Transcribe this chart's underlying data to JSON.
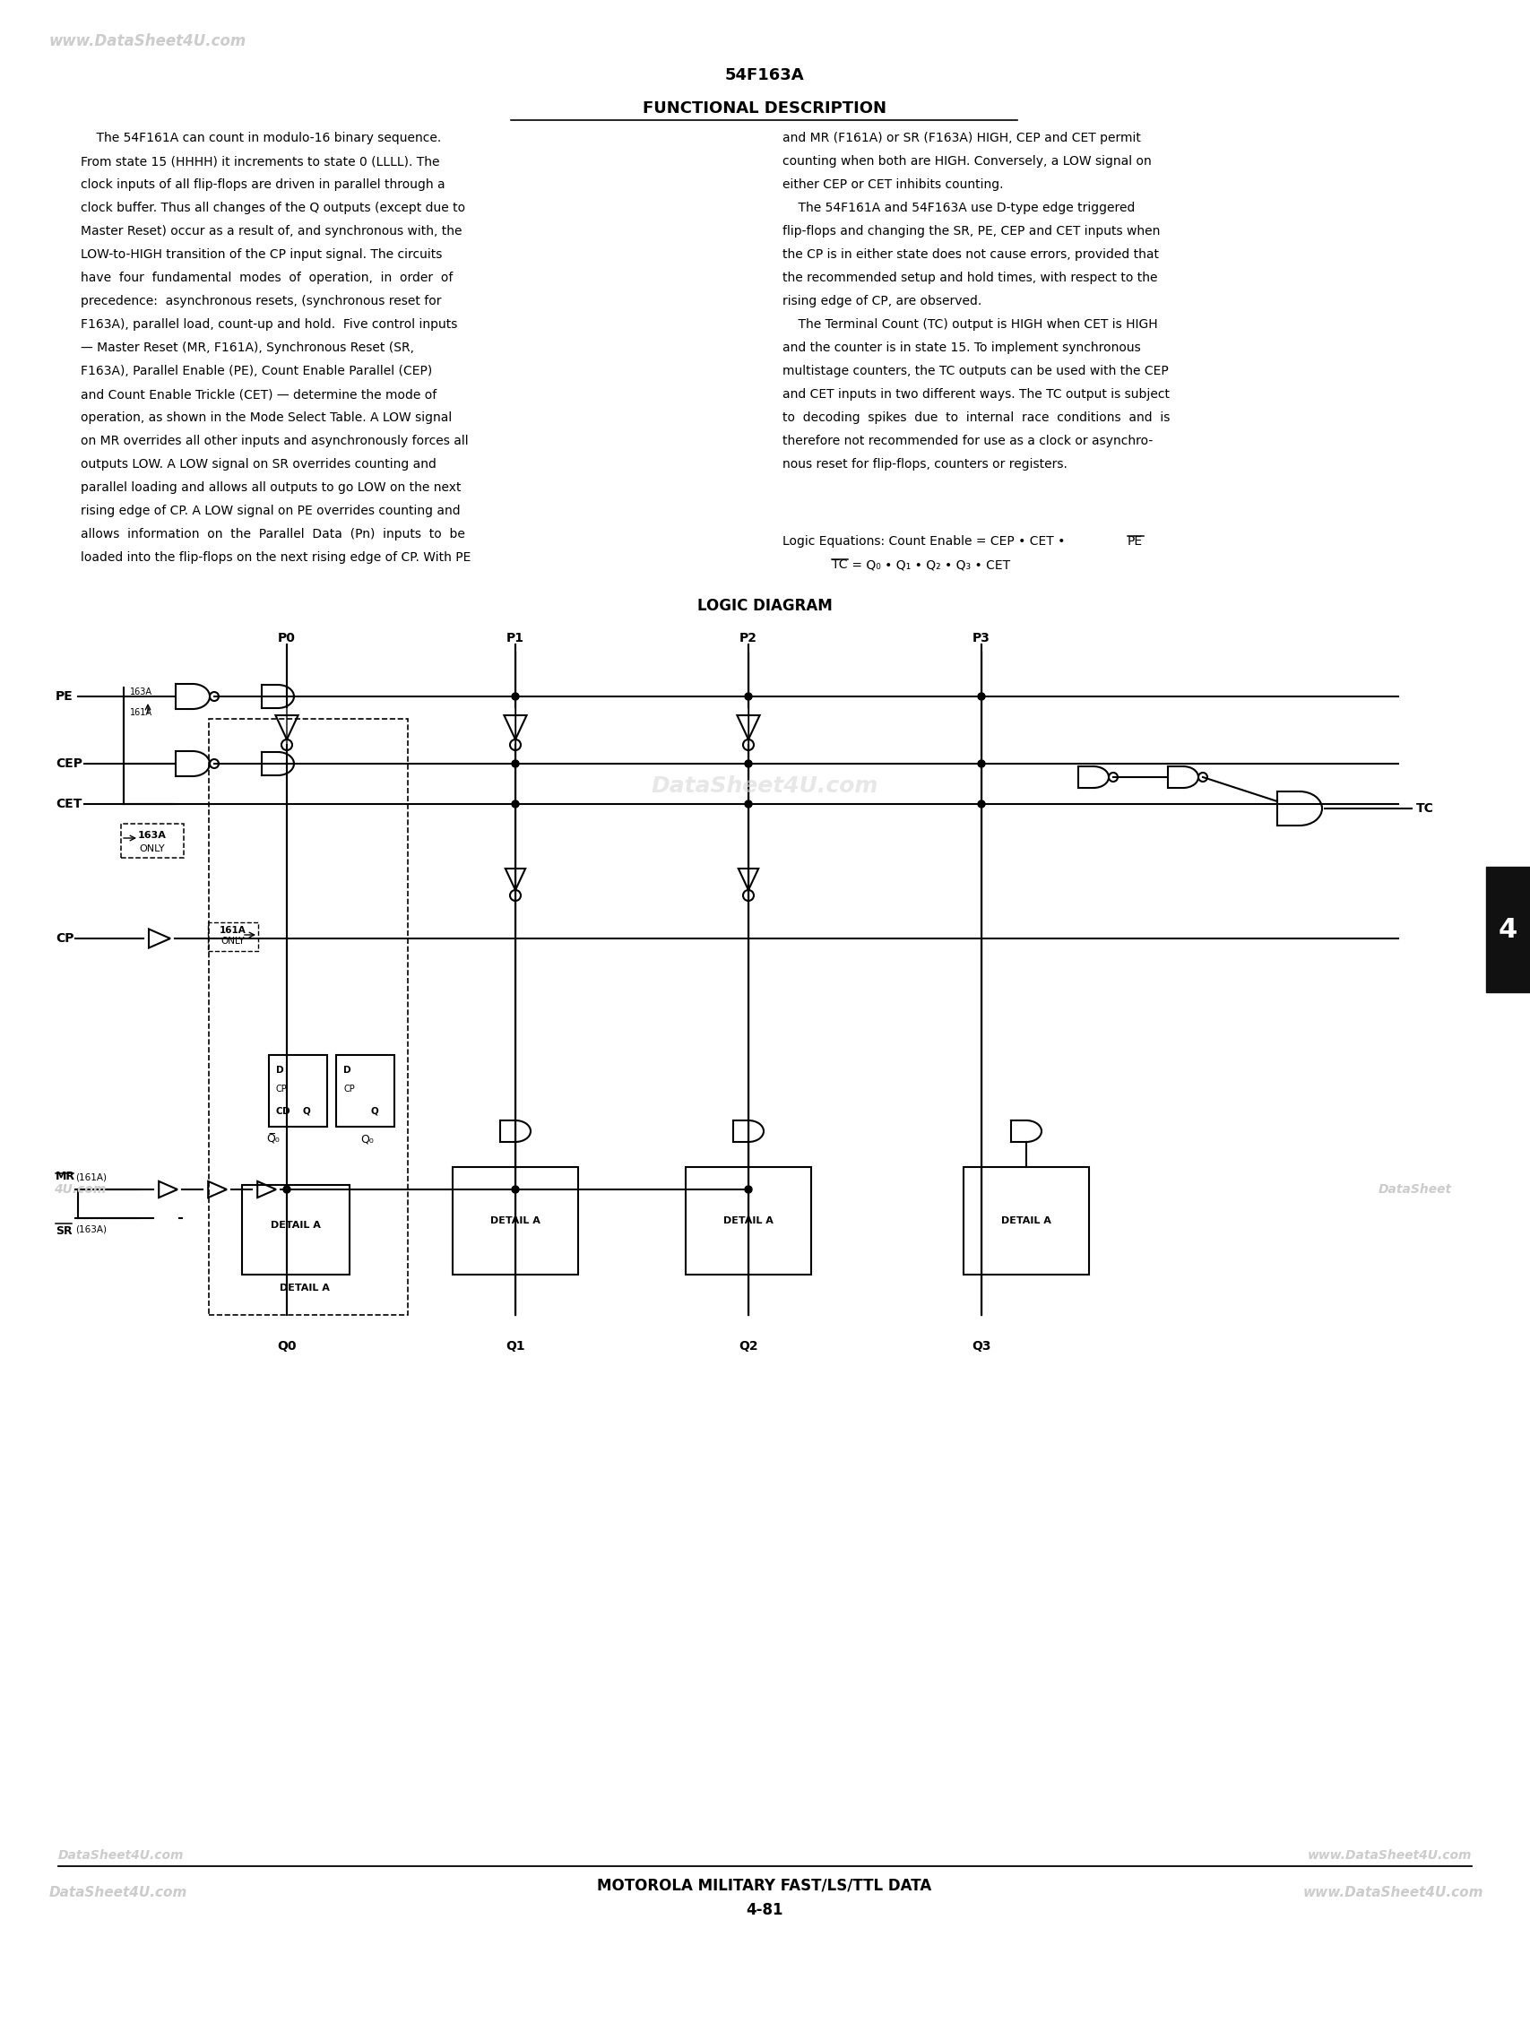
{
  "page_title": "54F163A",
  "section_title": "FUNCTIONAL DESCRIPTION",
  "watermark_top_left": "www.DataSheet4U.com",
  "watermark_bottom_left": "DataSheet4U.com",
  "watermark_bottom_right": "www.DataSheet4U.com",
  "watermark_mid_left": "4U.com",
  "watermark_mid_right": "DataSheet",
  "watermark_diagram": "DataSheet4U.com",
  "page_number_tab": "4",
  "footer_text1": "MOTOROLA MILITARY FAST/LS/TTL DATA",
  "footer_text2": "4-81",
  "background_color": "#ffffff",
  "text_color": "#000000",
  "watermark_color": "#cccccc",
  "left_col_lines": [
    "    The 54F161A can count in modulo-16 binary sequence.",
    "From state 15 (HHHH) it increments to state 0 (LLLL). The",
    "clock inputs of all flip-flops are driven in parallel through a",
    "clock buffer. Thus all changes of the Q outputs (except due to",
    "Master Reset) occur as a result of, and synchronous with, the",
    "LOW-to-HIGH transition of the CP input signal. The circuits",
    "have  four  fundamental  modes  of  operation,  in  order  of",
    "precedence:  asynchronous resets, (synchronous reset for",
    "F163A), parallel load, count-up and hold.  Five control inputs",
    "— Master Reset (MR, F161A), Synchronous Reset (SR,",
    "F163A), Parallel Enable (PE), Count Enable Parallel (CEP)",
    "and Count Enable Trickle (CET) — determine the mode of",
    "operation, as shown in the Mode Select Table. A LOW signal",
    "on MR overrides all other inputs and asynchronously forces all",
    "outputs LOW. A LOW signal on SR overrides counting and",
    "parallel loading and allows all outputs to go LOW on the next",
    "rising edge of CP. A LOW signal on PE overrides counting and",
    "allows  information  on  the  Parallel  Data  (Pn)  inputs  to  be",
    "loaded into the flip-flops on the next rising edge of CP. With PE"
  ],
  "right_col_lines": [
    "and MR (F161A) or SR (F163A) HIGH, CEP and CET permit",
    "counting when both are HIGH. Conversely, a LOW signal on",
    "either CEP or CET inhibits counting.",
    "    The 54F161A and 54F163A use D-type edge triggered",
    "flip-flops and changing the SR, PE, CEP and CET inputs when",
    "the CP is in either state does not cause errors, provided that",
    "the recommended setup and hold times, with respect to the",
    "rising edge of CP, are observed.",
    "    The Terminal Count (TC) output is HIGH when CET is HIGH",
    "and the counter is in state 15. To implement synchronous",
    "multistage counters, the TC outputs can be used with the CEP",
    "and CET inputs in two different ways. The TC output is subject",
    "to  decoding  spikes  due  to  internal  race  conditions  and  is",
    "therefore not recommended for use as a clock or asynchro-",
    "nous reset for flip-flops, counters or registers."
  ],
  "logic_diagram_title": "LOGIC DIAGRAM"
}
